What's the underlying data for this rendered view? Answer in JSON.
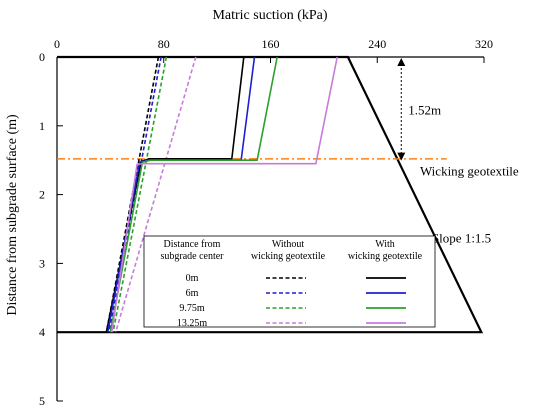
{
  "chart_data": {
    "type": "line",
    "xlabel": "Matric suction (kPa)",
    "ylabel": "Distance from subgrade surface (m)",
    "x_axis_position": "top",
    "y_axis_inverted": true,
    "xlim": [
      0,
      320
    ],
    "ylim": [
      0,
      5
    ],
    "x_ticks": [
      0,
      80,
      160,
      240,
      320
    ],
    "y_ticks": [
      0,
      1,
      2,
      3,
      4,
      5
    ],
    "grid": false,
    "legend_position": "bottom-center",
    "legend": {
      "header_distance": [
        "Distance from",
        "subgrade center"
      ],
      "header_without": [
        "Without",
        "wicking geotextile"
      ],
      "header_with": [
        "With",
        "wicking geotextile"
      ],
      "rows": [
        "0m",
        "6m",
        "9.75m",
        "13.25m"
      ]
    },
    "series": [
      {
        "distance": "0m",
        "variant": "without",
        "color": "#000000",
        "dash": true,
        "points": [
          [
            76,
            0
          ],
          [
            37,
            4
          ]
        ]
      },
      {
        "distance": "6m",
        "variant": "without",
        "color": "#1f1fd0",
        "dash": true,
        "points": [
          [
            78,
            0
          ],
          [
            39,
            4
          ]
        ]
      },
      {
        "distance": "9.75m",
        "variant": "without",
        "color": "#2ca02c",
        "dash": true,
        "points": [
          [
            82,
            0
          ],
          [
            42,
            4
          ]
        ]
      },
      {
        "distance": "13.25m",
        "variant": "without",
        "color": "#c77cdb",
        "dash": true,
        "points": [
          [
            104,
            0
          ],
          [
            44,
            4
          ]
        ]
      },
      {
        "distance": "0m",
        "variant": "with",
        "color": "#000000",
        "dash": false,
        "points": [
          [
            140,
            0
          ],
          [
            131,
            1.48
          ],
          [
            69,
            1.48
          ],
          [
            63,
            1.52
          ],
          [
            37,
            4
          ]
        ]
      },
      {
        "distance": "6m",
        "variant": "with",
        "color": "#1f1fd0",
        "dash": false,
        "points": [
          [
            148,
            0
          ],
          [
            138,
            1.5
          ],
          [
            68,
            1.5
          ],
          [
            62,
            1.53
          ],
          [
            38,
            4
          ]
        ]
      },
      {
        "distance": "9.75m",
        "variant": "with",
        "color": "#2ca02c",
        "dash": false,
        "points": [
          [
            165,
            0
          ],
          [
            150,
            1.5
          ],
          [
            70,
            1.5
          ],
          [
            64,
            1.53
          ],
          [
            40,
            4
          ]
        ]
      },
      {
        "distance": "13.25m",
        "variant": "with",
        "color": "#c77cdb",
        "dash": false,
        "points": [
          [
            210,
            0
          ],
          [
            194,
            1.55
          ],
          [
            66,
            1.55
          ],
          [
            60,
            1.56
          ],
          [
            41,
            4
          ]
        ]
      }
    ],
    "boundary": {
      "color": "#000000",
      "points": [
        [
          0,
          4
        ],
        [
          318,
          4
        ],
        [
          218,
          0
        ],
        [
          0,
          0
        ]
      ]
    },
    "geotextile_line": {
      "y": 1.48,
      "x_range": [
        0,
        292
      ],
      "color": "#ff7f0e"
    },
    "annotations": {
      "depth_label": "1.52m",
      "depth_arrow": {
        "x": 258,
        "y_from": 0,
        "y_to": 1.52
      },
      "geotextile_label": "Wicking geotextile",
      "geotextile_label_at": [
        272,
        1.65
      ],
      "slope_label": "Slope 1:1.5",
      "slope_label_at": [
        281,
        2.62
      ]
    }
  }
}
